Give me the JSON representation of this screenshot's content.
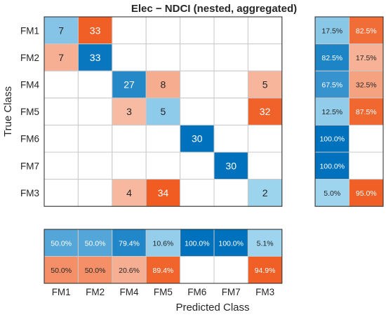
{
  "chart_data": {
    "type": "heatmap",
    "title": "Elec − NDCI (nested, aggregated)",
    "xlabel": "Predicted Class",
    "ylabel": "True Class",
    "row_labels": [
      "FM1",
      "FM2",
      "FM4",
      "FM5",
      "FM6",
      "FM7",
      "FM3"
    ],
    "col_labels": [
      "FM1",
      "FM2",
      "FM4",
      "FM5",
      "FM6",
      "FM7",
      "FM3"
    ],
    "matrix": [
      [
        7,
        33,
        0,
        0,
        0,
        0,
        0
      ],
      [
        7,
        33,
        0,
        0,
        0,
        0,
        0
      ],
      [
        0,
        0,
        27,
        8,
        0,
        0,
        5
      ],
      [
        0,
        0,
        3,
        5,
        0,
        0,
        32
      ],
      [
        0,
        0,
        0,
        0,
        30,
        0,
        0
      ],
      [
        0,
        0,
        0,
        0,
        0,
        30,
        0
      ],
      [
        0,
        0,
        4,
        34,
        0,
        0,
        2
      ]
    ],
    "row_summary": {
      "correct": [
        "17.5%",
        "82.5%",
        "67.5%",
        "12.5%",
        "100.0%",
        "100.0%",
        "5.0%"
      ],
      "incorrect": [
        "82.5%",
        "17.5%",
        "32.5%",
        "87.5%",
        "",
        "",
        "95.0%"
      ]
    },
    "column_summary": {
      "correct": [
        "50.0%",
        "50.0%",
        "79.4%",
        "10.6%",
        "100.0%",
        "100.0%",
        "5.1%"
      ],
      "incorrect": [
        "50.0%",
        "50.0%",
        "20.6%",
        "89.4%",
        "",
        "",
        "94.9%"
      ]
    },
    "colors": {
      "correct_strong": "#0072bd",
      "correct_light": "#a6d9f0",
      "incorrect_strong": "#f05a1e",
      "incorrect_light": "#f8c4b0",
      "empty": "#ffffff",
      "grid": "#c8c8c8",
      "frame": "#262626"
    }
  }
}
